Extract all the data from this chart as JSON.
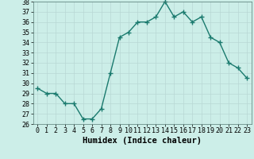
{
  "x": [
    0,
    1,
    2,
    3,
    4,
    5,
    6,
    7,
    8,
    9,
    10,
    11,
    12,
    13,
    14,
    15,
    16,
    17,
    18,
    19,
    20,
    21,
    22,
    23
  ],
  "y": [
    29.5,
    29.0,
    29.0,
    28.0,
    28.0,
    26.5,
    26.5,
    27.5,
    31.0,
    34.5,
    35.0,
    36.0,
    36.0,
    36.5,
    38.0,
    36.5,
    37.0,
    36.0,
    36.5,
    34.5,
    34.0,
    32.0,
    31.5,
    30.5
  ],
  "line_color": "#1a7a6e",
  "marker": "+",
  "marker_size": 4,
  "linewidth": 1.0,
  "xlabel": "Humidex (Indice chaleur)",
  "ylim": [
    26,
    38
  ],
  "xlim": [
    -0.5,
    23.5
  ],
  "yticks": [
    26,
    27,
    28,
    29,
    30,
    31,
    32,
    33,
    34,
    35,
    36,
    37,
    38
  ],
  "xticks": [
    0,
    1,
    2,
    3,
    4,
    5,
    6,
    7,
    8,
    9,
    10,
    11,
    12,
    13,
    14,
    15,
    16,
    17,
    18,
    19,
    20,
    21,
    22,
    23
  ],
  "bg_color": "#cceee8",
  "grid_color": "#b8d8d4",
  "fig_bg": "#cceee8",
  "xlabel_fontsize": 7.5,
  "tick_fontsize": 6.0
}
